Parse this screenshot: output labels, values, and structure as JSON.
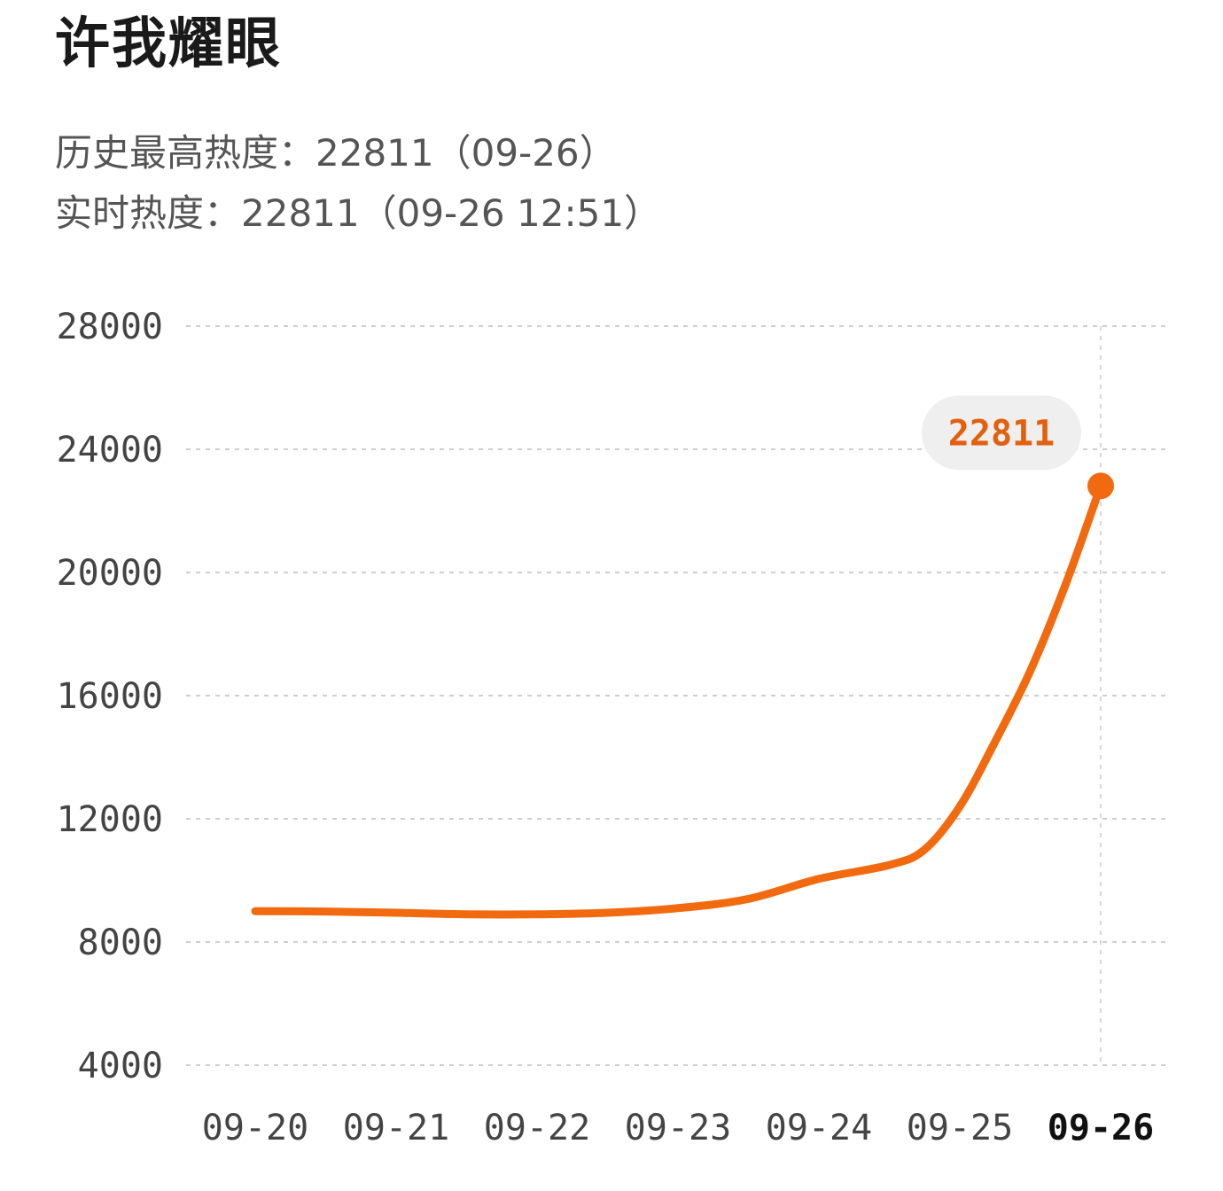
{
  "title": "许我耀眼",
  "stats": {
    "peak": "历史最高热度：22811（09-26）",
    "live": "实时热度：22811（09-26 12:51）"
  },
  "colors": {
    "line": "#f26a0f",
    "bubble_bg": "#efefef",
    "bubble_text": "#e2600e",
    "grid": "#cfcfcf"
  },
  "chart_data": {
    "type": "line",
    "title": "许我耀眼",
    "xlabel": "",
    "ylabel": "",
    "categories": [
      "09-20",
      "09-21",
      "09-22",
      "09-23",
      "09-24",
      "09-25",
      "09-26"
    ],
    "active_category": "09-26",
    "yticks": [
      4000,
      8000,
      12000,
      16000,
      20000,
      24000,
      28000
    ],
    "ylim": [
      4000,
      28000
    ],
    "grid": true,
    "series": [
      {
        "x": [
          0,
          0.5,
          1,
          1.5,
          2,
          2.5,
          3,
          3.5,
          4,
          4.5,
          4.75,
          5,
          5.25,
          5.5,
          5.75,
          6
        ],
        "values": [
          9000,
          8990,
          8950,
          8900,
          8900,
          8950,
          9100,
          9400,
          10050,
          10500,
          11000,
          12400,
          14500,
          16800,
          19600,
          22811
        ]
      }
    ],
    "highlight": {
      "category": "09-26",
      "value": 22811,
      "label": "22811"
    }
  }
}
